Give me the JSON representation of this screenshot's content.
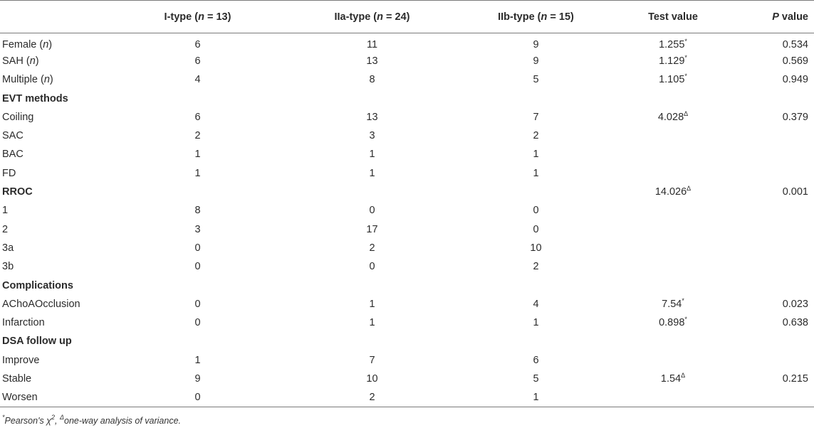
{
  "header": {
    "col0": "",
    "groups": [
      {
        "name": "I-type",
        "n": "13"
      },
      {
        "name": "IIa-type",
        "n": "24"
      },
      {
        "name": "IIb-type",
        "n": "15"
      }
    ],
    "n_label": "n",
    "eq": " = ",
    "test_value": "Test value",
    "p_label": "P",
    "p_suffix": " value"
  },
  "rows": [
    {
      "kind": "data",
      "label": "Female",
      "label_it": "n",
      "i": "6",
      "iia": "11",
      "iib": "9",
      "test": "1.255",
      "test_sym": "*",
      "p": "0.534"
    },
    {
      "kind": "data",
      "label": "SAH",
      "label_it": "n",
      "i": "6",
      "iia": "13",
      "iib": "9",
      "test": "1.129",
      "test_sym": "*",
      "p": "0.569"
    },
    {
      "kind": "data",
      "label": "Multiple",
      "label_it": "n",
      "i": "4",
      "iia": "8",
      "iib": "5",
      "test": "1.105",
      "test_sym": "*",
      "p": "0.949"
    },
    {
      "kind": "section",
      "label": "EVT methods"
    },
    {
      "kind": "data",
      "label": "Coiling",
      "i": "6",
      "iia": "13",
      "iib": "7",
      "test": "4.028",
      "test_sym": "Δ",
      "p": "0.379"
    },
    {
      "kind": "data",
      "label": "SAC",
      "i": "2",
      "iia": "3",
      "iib": "2"
    },
    {
      "kind": "data",
      "label": "BAC",
      "i": "1",
      "iia": "1",
      "iib": "1"
    },
    {
      "kind": "data",
      "label": "FD",
      "i": "1",
      "iia": "1",
      "iib": "1"
    },
    {
      "kind": "section",
      "label": "RROC",
      "test": "14.026",
      "test_sym": "Δ",
      "p": "0.001"
    },
    {
      "kind": "data",
      "label": "1",
      "i": "8",
      "iia": "0",
      "iib": "0"
    },
    {
      "kind": "data",
      "label": "2",
      "i": "3",
      "iia": "17",
      "iib": "0"
    },
    {
      "kind": "data",
      "label": "3a",
      "i": "0",
      "iia": "2",
      "iib": "10"
    },
    {
      "kind": "data",
      "label": "3b",
      "i": "0",
      "iia": "0",
      "iib": "2"
    },
    {
      "kind": "section",
      "label": "Complications"
    },
    {
      "kind": "data",
      "label": "AChoAOcclusion",
      "i": "0",
      "iia": "1",
      "iib": "4",
      "test": "7.54",
      "test_sym": "*",
      "p": "0.023"
    },
    {
      "kind": "data",
      "label": "Infarction",
      "i": "0",
      "iia": "1",
      "iib": "1",
      "test": "0.898",
      "test_sym": "*",
      "p": "0.638"
    },
    {
      "kind": "section",
      "label": "DSA follow up"
    },
    {
      "kind": "data",
      "label": "Improve",
      "i": "1",
      "iia": "7",
      "iib": "6"
    },
    {
      "kind": "data",
      "label": "Stable",
      "i": "9",
      "iia": "10",
      "iib": "5",
      "test": "1.54",
      "test_sym": "Δ",
      "p": "0.215"
    },
    {
      "kind": "data",
      "label": "Worsen",
      "i": "0",
      "iia": "2",
      "iib": "1"
    }
  ],
  "footnote": {
    "star": "*",
    "pearson": "Pearson's χ",
    "sq": "2",
    "sep": ", ",
    "delta": "Δ",
    "anova": "one-way analysis of variance."
  }
}
